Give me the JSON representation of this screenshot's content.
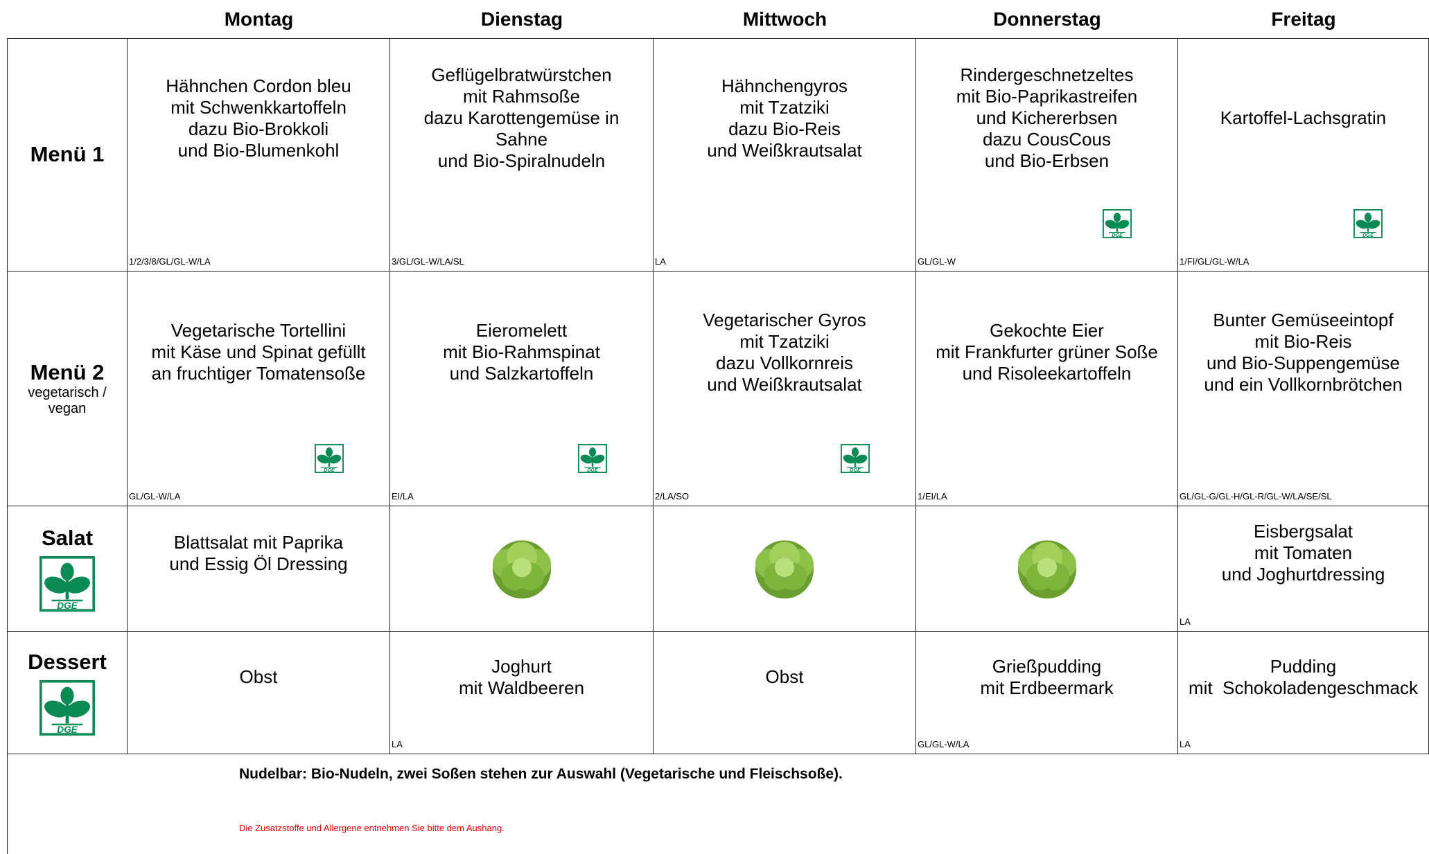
{
  "days": [
    "Montag",
    "Dienstag",
    "Mittwoch",
    "Donnerstag",
    "Freitag"
  ],
  "logo_text": "DGE",
  "rows": [
    {
      "label": "Menü 1",
      "cells": [
        {
          "lines": [
            "Hähnchen Cordon bleu",
            "mit Schwenkkartoffeln",
            "dazu Bio-Brokkoli",
            "und Bio-Blumenkohl"
          ],
          "codes": "1/2/3/8/GL/GL-W/LA"
        },
        {
          "lines": [
            "Geflügelbratwürstchen",
            "mit Rahmsoße",
            "dazu Karottengemüse in",
            "Sahne",
            "und Bio-Spiralnudeln"
          ],
          "codes": "3/GL/GL-W/LA/SL"
        },
        {
          "lines": [
            "Hähnchengyros",
            "mit Tzatziki",
            "dazu Bio-Reis",
            "und Weißkrautsalat"
          ],
          "codes": "LA"
        },
        {
          "lines": [
            "Rindergeschnetzeltes",
            "mit Bio-Paprikastreifen",
            "und Kichererbsen",
            "dazu CousCous",
            "und Bio-Erbsen"
          ],
          "codes": "GL/GL-W",
          "dge": true
        },
        {
          "lines": [
            "Kartoffel-Lachsgratin"
          ],
          "codes": "1/FI/GL/GL-W/LA",
          "dge": true
        }
      ]
    },
    {
      "label": "Menü 2",
      "sublabel": [
        "vegetarisch /",
        "vegan"
      ],
      "cells": [
        {
          "lines": [
            "Vegetarische Tortellini",
            "mit Käse und Spinat gefüllt",
            "an fruchtiger Tomatensoße"
          ],
          "codes": "GL/GL-W/LA",
          "dge": true
        },
        {
          "lines": [
            "Eieromelett",
            "mit Bio-Rahmspinat",
            "und Salzkartoffeln"
          ],
          "codes": "EI/LA",
          "dge": true
        },
        {
          "lines": [
            "Vegetarischer Gyros",
            "mit Tzatziki",
            "dazu Vollkornreis",
            "und Weißkrautsalat"
          ],
          "codes": "2/LA/SO",
          "dge": true
        },
        {
          "lines": [
            "Gekochte Eier",
            "mit Frankfurter grüner Soße",
            "und Risoleekartoffeln"
          ],
          "codes": "1/EI/LA"
        },
        {
          "lines": [
            "Bunter Gemüseeintopf",
            "mit Bio-Reis",
            "und Bio-Suppengemüse",
            "und ein Vollkornbrötchen"
          ],
          "codes": "GL/GL-G/GL-H/GL-R/GL-W/LA/SE/SL"
        }
      ]
    },
    {
      "label": "Salat",
      "label_dge": true,
      "cells": [
        {
          "lines": [
            "Blattsalat mit Paprika",
            "und Essig Öl Dressing"
          ]
        },
        {
          "salad_icon": true
        },
        {
          "salad_icon": true
        },
        {
          "salad_icon": true
        },
        {
          "lines": [
            "Eisbergsalat",
            "mit Tomaten",
            "und Joghurtdressing"
          ],
          "codes": "LA"
        }
      ]
    },
    {
      "label": "Dessert",
      "label_dge": true,
      "cells": [
        {
          "lines": [
            "Obst"
          ]
        },
        {
          "lines": [
            "Joghurt",
            "mit Waldbeeren"
          ],
          "codes": "LA"
        },
        {
          "lines": [
            "Obst"
          ]
        },
        {
          "lines": [
            "Grießpudding",
            "mit Erdbeermark"
          ],
          "codes": "GL/GL-W/LA"
        },
        {
          "lines": [
            "Pudding",
            "mit  Schokoladengeschmack"
          ],
          "codes": "LA"
        }
      ]
    }
  ],
  "footer": {
    "note": "Nudelbar: Bio-Nudeln, zwei Soßen stehen zur Auswahl (Vegetarische und Fleischsoße).",
    "disclaimer": "Die Zusatzstoffe und Allergene entnehmen Sie bitte dem Aushang."
  }
}
